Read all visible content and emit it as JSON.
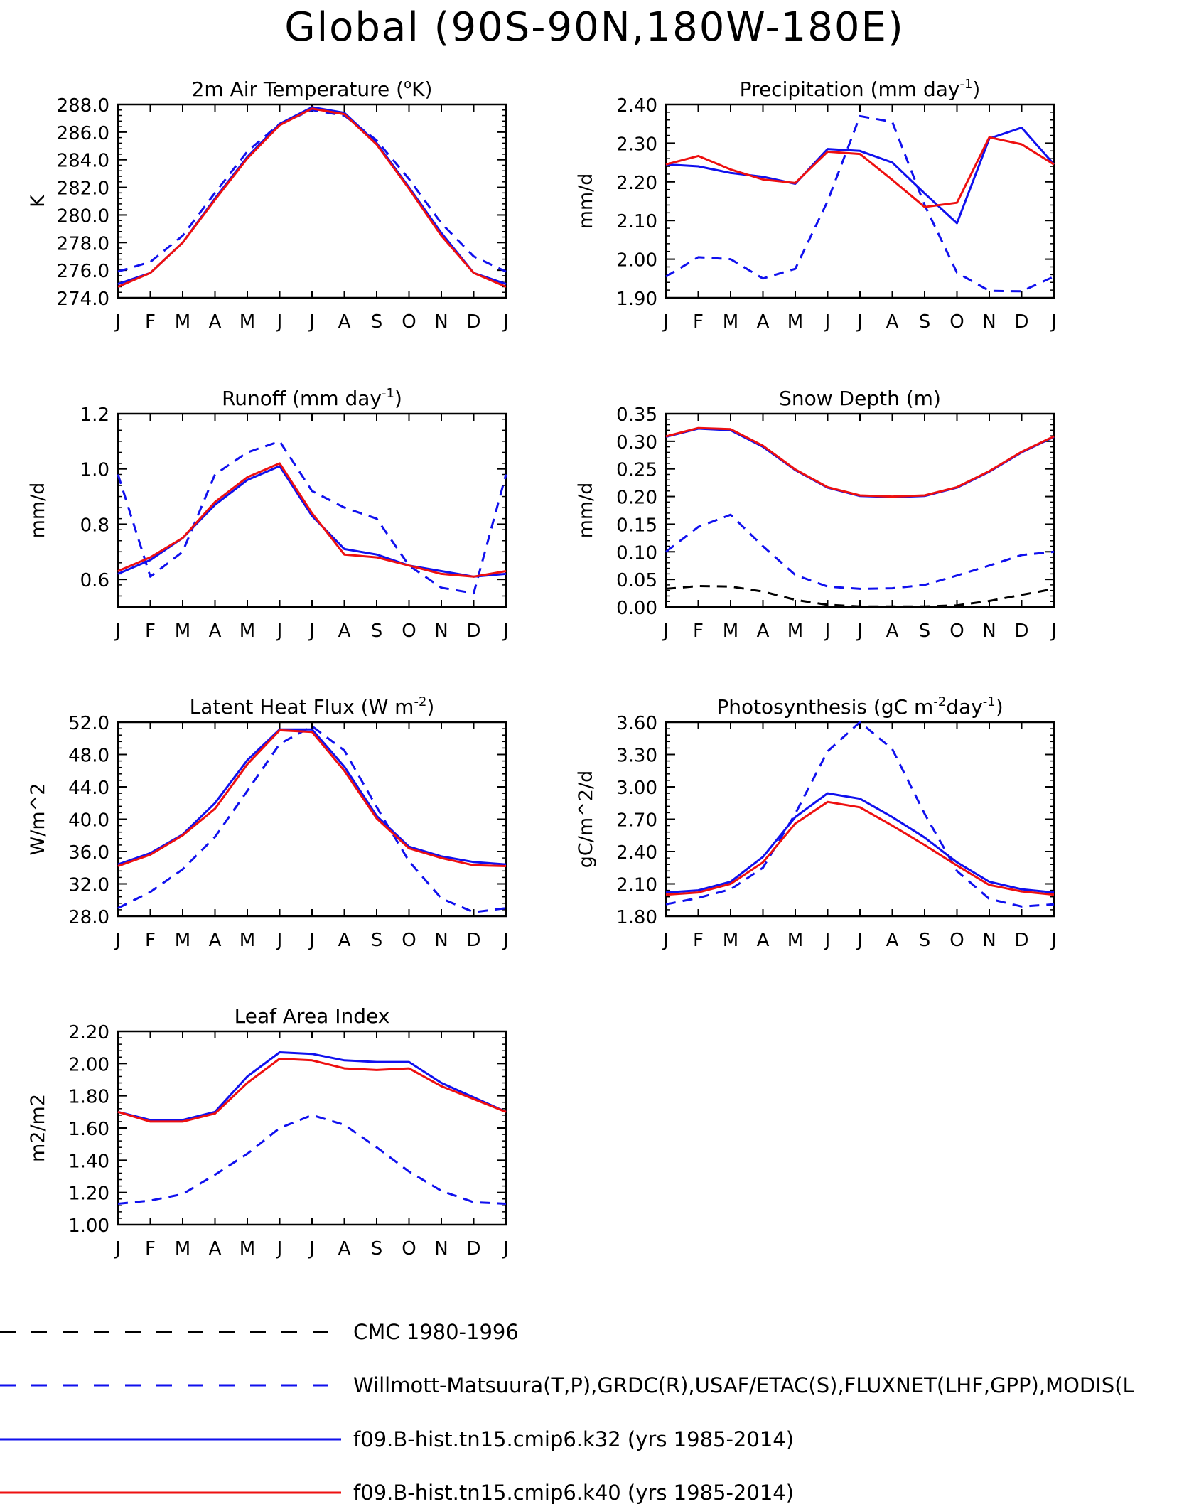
{
  "page": {
    "title": "Global (90S-90N,180W-180E)"
  },
  "chart_data": [
    {
      "type": "line",
      "title": "2m Air Temperature (°K)",
      "title_parts": [
        "2m Air Temperature (",
        "o",
        "K)"
      ],
      "title_kind": "degree",
      "ylabel": "K",
      "categories": [
        "J",
        "F",
        "M",
        "A",
        "M",
        "J",
        "J",
        "A",
        "S",
        "O",
        "N",
        "D",
        "J"
      ],
      "ylim": [
        274.0,
        288.0
      ],
      "yticks": [
        274.0,
        276.0,
        278.0,
        280.0,
        282.0,
        284.0,
        286.0,
        288.0
      ],
      "ytick_labels": [
        "274.0",
        "276.0",
        "278.0",
        "280.0",
        "282.0",
        "284.0",
        "286.0",
        "288.0"
      ],
      "series": [
        {
          "style": "obs",
          "values": [
            275.9,
            276.6,
            278.5,
            281.6,
            284.6,
            286.6,
            287.6,
            287.2,
            285.4,
            282.6,
            279.4,
            277.0,
            275.9
          ]
        },
        {
          "style": "k32",
          "values": [
            275.0,
            275.8,
            278.0,
            281.2,
            284.2,
            286.6,
            287.8,
            287.4,
            285.2,
            282.0,
            278.7,
            275.8,
            275.0
          ]
        },
        {
          "style": "k40",
          "values": [
            274.8,
            275.8,
            278.0,
            281.1,
            284.1,
            286.5,
            287.7,
            287.3,
            285.1,
            281.9,
            278.5,
            275.8,
            274.8
          ]
        }
      ]
    },
    {
      "type": "line",
      "title": "Precipitation (mm day-1)",
      "title_parts": [
        "Precipitation (mm day",
        "-1",
        ")"
      ],
      "title_kind": "sup",
      "ylabel": "mm/d",
      "categories": [
        "J",
        "F",
        "M",
        "A",
        "M",
        "J",
        "J",
        "A",
        "S",
        "O",
        "N",
        "D",
        "J"
      ],
      "ylim": [
        1.9,
        2.4
      ],
      "yticks": [
        1.9,
        2.0,
        2.1,
        2.2,
        2.3,
        2.4
      ],
      "ytick_labels": [
        "1.90",
        "2.00",
        "2.10",
        "2.20",
        "2.30",
        "2.40"
      ],
      "series": [
        {
          "style": "obs",
          "values": [
            1.955,
            2.005,
            2.0,
            1.95,
            1.975,
            2.15,
            2.37,
            2.355,
            2.14,
            1.965,
            1.918,
            1.917,
            1.955
          ]
        },
        {
          "style": "k32",
          "values": [
            2.245,
            2.24,
            2.223,
            2.213,
            2.195,
            2.285,
            2.28,
            2.25,
            2.17,
            2.093,
            2.312,
            2.34,
            2.245
          ]
        },
        {
          "style": "k40",
          "values": [
            2.245,
            2.267,
            2.232,
            2.206,
            2.197,
            2.278,
            2.272,
            2.205,
            2.135,
            2.146,
            2.315,
            2.297,
            2.245
          ]
        }
      ]
    },
    {
      "type": "line",
      "title": "Runoff (mm day-1)",
      "title_parts": [
        "Runoff (mm day",
        "-1",
        ")"
      ],
      "title_kind": "sup",
      "ylabel": "mm/d",
      "categories": [
        "J",
        "F",
        "M",
        "A",
        "M",
        "J",
        "J",
        "A",
        "S",
        "O",
        "N",
        "D",
        "J"
      ],
      "ylim": [
        0.5,
        1.2
      ],
      "yticks": [
        0.6,
        0.8,
        1.0,
        1.2
      ],
      "ytick_labels": [
        "0.6",
        "0.8",
        "1.0",
        "1.2"
      ],
      "series": [
        {
          "style": "obs",
          "values": [
            0.98,
            0.61,
            0.7,
            0.98,
            1.06,
            1.1,
            0.92,
            0.86,
            0.82,
            0.65,
            0.57,
            0.55,
            0.98
          ]
        },
        {
          "style": "k32",
          "values": [
            0.62,
            0.67,
            0.75,
            0.87,
            0.96,
            1.01,
            0.83,
            0.71,
            0.69,
            0.65,
            0.63,
            0.61,
            0.62
          ]
        },
        {
          "style": "k40",
          "values": [
            0.63,
            0.68,
            0.75,
            0.88,
            0.97,
            1.02,
            0.84,
            0.69,
            0.68,
            0.65,
            0.62,
            0.61,
            0.63
          ]
        }
      ]
    },
    {
      "type": "line",
      "title": "Snow Depth (m)",
      "title_parts": [
        "Snow Depth (m)",
        "",
        ""
      ],
      "title_kind": "plain",
      "ylabel": "mm/d",
      "categories": [
        "J",
        "F",
        "M",
        "A",
        "M",
        "J",
        "J",
        "A",
        "S",
        "O",
        "N",
        "D",
        "J"
      ],
      "ylim": [
        0.0,
        0.35
      ],
      "yticks": [
        0.0,
        0.05,
        0.1,
        0.15,
        0.2,
        0.25,
        0.3,
        0.35
      ],
      "ytick_labels": [
        "0.00",
        "0.05",
        "0.10",
        "0.15",
        "0.20",
        "0.25",
        "0.30",
        "0.35"
      ],
      "series": [
        {
          "style": "cmc",
          "values": [
            0.033,
            0.038,
            0.037,
            0.028,
            0.013,
            0.004,
            0.001,
            0.001,
            0.001,
            0.003,
            0.011,
            0.022,
            0.033
          ]
        },
        {
          "style": "obs",
          "values": [
            0.1,
            0.145,
            0.167,
            0.11,
            0.058,
            0.037,
            0.033,
            0.034,
            0.04,
            0.057,
            0.075,
            0.094,
            0.1
          ]
        },
        {
          "style": "k32",
          "values": [
            0.308,
            0.323,
            0.32,
            0.29,
            0.248,
            0.216,
            0.201,
            0.199,
            0.201,
            0.216,
            0.245,
            0.28,
            0.308
          ]
        },
        {
          "style": "k40",
          "values": [
            0.309,
            0.324,
            0.322,
            0.292,
            0.249,
            0.217,
            0.202,
            0.2,
            0.202,
            0.217,
            0.246,
            0.281,
            0.309
          ]
        }
      ]
    },
    {
      "type": "line",
      "title": "Latent Heat Flux (W m-2)",
      "title_parts": [
        "Latent Heat Flux (W m",
        "-2",
        ")"
      ],
      "title_kind": "sup",
      "ylabel": "W/m^2",
      "categories": [
        "J",
        "F",
        "M",
        "A",
        "M",
        "J",
        "J",
        "A",
        "S",
        "O",
        "N",
        "D",
        "J"
      ],
      "ylim": [
        28.0,
        52.0
      ],
      "yticks": [
        28.0,
        32.0,
        36.0,
        40.0,
        44.0,
        48.0,
        52.0
      ],
      "ytick_labels": [
        "28.0",
        "32.0",
        "36.0",
        "40.0",
        "44.0",
        "48.0",
        "52.0"
      ],
      "series": [
        {
          "style": "obs",
          "values": [
            29.0,
            31.0,
            33.8,
            37.8,
            43.5,
            49.3,
            51.5,
            48.5,
            41.5,
            34.8,
            30.2,
            28.5,
            29.0
          ]
        },
        {
          "style": "k32",
          "values": [
            34.4,
            35.8,
            38.1,
            42.0,
            47.3,
            51.1,
            51.1,
            46.5,
            40.4,
            36.6,
            35.4,
            34.7,
            34.4
          ]
        },
        {
          "style": "k40",
          "values": [
            34.2,
            35.6,
            38.0,
            41.3,
            46.8,
            51.0,
            50.8,
            46.0,
            40.1,
            36.4,
            35.2,
            34.3,
            34.2
          ]
        }
      ]
    },
    {
      "type": "line",
      "title": "Photosynthesis (gC m-2day-1)",
      "title_parts": [
        "Photosynthesis (gC m",
        "-2",
        "day",
        "-1",
        ")"
      ],
      "title_kind": "sup2",
      "ylabel": "gC/m^2/d",
      "categories": [
        "J",
        "F",
        "M",
        "A",
        "M",
        "J",
        "J",
        "A",
        "S",
        "O",
        "N",
        "D",
        "J"
      ],
      "ylim": [
        1.8,
        3.6
      ],
      "yticks": [
        1.8,
        2.1,
        2.4,
        2.7,
        3.0,
        3.3,
        3.6
      ],
      "ytick_labels": [
        "1.80",
        "2.10",
        "2.40",
        "2.70",
        "3.00",
        "3.30",
        "3.60"
      ],
      "series": [
        {
          "style": "obs",
          "values": [
            1.91,
            1.97,
            2.05,
            2.25,
            2.75,
            3.33,
            3.6,
            3.35,
            2.75,
            2.22,
            1.96,
            1.89,
            1.91
          ]
        },
        {
          "style": "k32",
          "values": [
            2.02,
            2.04,
            2.12,
            2.35,
            2.72,
            2.94,
            2.89,
            2.72,
            2.53,
            2.3,
            2.12,
            2.05,
            2.02
          ]
        },
        {
          "style": "k40",
          "values": [
            2.0,
            2.02,
            2.1,
            2.3,
            2.66,
            2.86,
            2.81,
            2.64,
            2.46,
            2.27,
            2.09,
            2.03,
            2.0
          ]
        }
      ]
    },
    {
      "type": "line",
      "title": "Leaf Area Index",
      "title_parts": [
        "Leaf Area Index",
        "",
        ""
      ],
      "title_kind": "plain",
      "ylabel": "m2/m2",
      "categories": [
        "J",
        "F",
        "M",
        "A",
        "M",
        "J",
        "J",
        "A",
        "S",
        "O",
        "N",
        "D",
        "J"
      ],
      "ylim": [
        1.0,
        2.2
      ],
      "yticks": [
        1.0,
        1.2,
        1.4,
        1.6,
        1.8,
        2.0,
        2.2
      ],
      "ytick_labels": [
        "1.00",
        "1.20",
        "1.40",
        "1.60",
        "1.80",
        "2.00",
        "2.20"
      ],
      "series": [
        {
          "style": "obs",
          "values": [
            1.13,
            1.15,
            1.19,
            1.31,
            1.44,
            1.6,
            1.68,
            1.62,
            1.48,
            1.33,
            1.21,
            1.14,
            1.13
          ]
        },
        {
          "style": "k32",
          "values": [
            1.7,
            1.65,
            1.65,
            1.7,
            1.92,
            2.07,
            2.06,
            2.02,
            2.01,
            2.01,
            1.88,
            1.79,
            1.7
          ]
        },
        {
          "style": "k40",
          "values": [
            1.7,
            1.64,
            1.64,
            1.69,
            1.88,
            2.03,
            2.02,
            1.97,
            1.96,
            1.97,
            1.86,
            1.78,
            1.7
          ]
        }
      ]
    }
  ],
  "legend": [
    {
      "style": "cmc",
      "label": "CMC 1980-1996"
    },
    {
      "style": "obs",
      "label": "Willmott-Matsuura(T,P),GRDC(R),USAF/ETAC(S),FLUXNET(LHF,GPP),MODIS(L"
    },
    {
      "style": "k32",
      "label": "f09.B-hist.tn15.cmip6.k32 (yrs 1985-2014)"
    },
    {
      "style": "k40",
      "label": "f09.B-hist.tn15.cmip6.k40 (yrs 1985-2014)"
    }
  ],
  "colors": {
    "obs": "#1010ee",
    "k32": "#1010ee",
    "k40": "#ee1010",
    "cmc": "#000000",
    "axis": "#000000"
  }
}
